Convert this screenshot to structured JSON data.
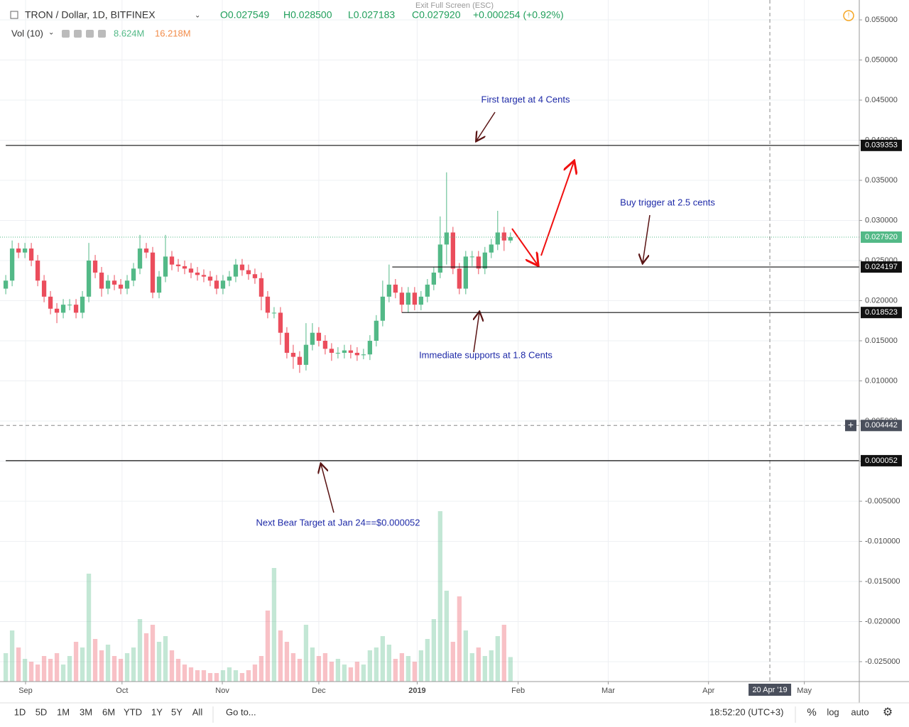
{
  "chart_data": {
    "type": "candlestick",
    "title": "TRON / Dollar, 1D, BITFINEX",
    "ohlc_legend": [
      "O0.027549",
      "H0.028500",
      "L0.027183",
      "C0.027920",
      "+0.000254 (+0.92%)"
    ],
    "volume_legend": {
      "name": "Vol (10)",
      "values": [
        "8.624M",
        "16.218M"
      ]
    },
    "up_color": "#53b987",
    "down_color": "#eb4d5c",
    "open": [
      0.0215,
      0.0225,
      0.0265,
      0.026,
      0.0265,
      0.025,
      0.0225,
      0.0205,
      0.019,
      0.0185,
      0.0195,
      0.0195,
      0.0185,
      0.0205,
      0.025,
      0.0235,
      0.0215,
      0.0225,
      0.022,
      0.0215,
      0.0225,
      0.024,
      0.0265,
      0.026,
      0.021,
      0.023,
      0.0255,
      0.0245,
      0.0243,
      0.024,
      0.0235,
      0.0232,
      0.023,
      0.0225,
      0.0215,
      0.0225,
      0.023,
      0.0245,
      0.0238,
      0.0233,
      0.0228,
      0.0205,
      0.0185,
      0.0185,
      0.016,
      0.0135,
      0.013,
      0.012,
      0.0145,
      0.016,
      0.015,
      0.014,
      0.0135,
      0.0135,
      0.0138,
      0.0135,
      0.0132,
      0.0133,
      0.015,
      0.0175,
      0.0205,
      0.022,
      0.021,
      0.0195,
      0.021,
      0.0195,
      0.0205,
      0.022,
      0.0235,
      0.027,
      0.0285,
      0.024,
      0.0215,
      0.0255,
      0.0255,
      0.024,
      0.026,
      0.027,
      0.0285,
      0.0275
    ],
    "high": [
      0.0232,
      0.0275,
      0.0272,
      0.0272,
      0.0272,
      0.0257,
      0.0232,
      0.0212,
      0.0197,
      0.0202,
      0.0202,
      0.0202,
      0.0212,
      0.0272,
      0.0257,
      0.0242,
      0.0232,
      0.0232,
      0.0227,
      0.0232,
      0.0247,
      0.0282,
      0.0272,
      0.0267,
      0.0237,
      0.0282,
      0.0262,
      0.0252,
      0.025,
      0.0247,
      0.0242,
      0.0239,
      0.0237,
      0.0232,
      0.0232,
      0.0237,
      0.0252,
      0.0252,
      0.0245,
      0.024,
      0.0235,
      0.0212,
      0.0192,
      0.0192,
      0.0167,
      0.0145,
      0.0137,
      0.0172,
      0.0172,
      0.0167,
      0.0157,
      0.0147,
      0.0142,
      0.0145,
      0.0145,
      0.0142,
      0.014,
      0.0157,
      0.0182,
      0.0225,
      0.0245,
      0.0227,
      0.0217,
      0.0217,
      0.0217,
      0.0212,
      0.0227,
      0.0242,
      0.0305,
      0.036,
      0.0292,
      0.0247,
      0.0262,
      0.0262,
      0.0262,
      0.0267,
      0.0277,
      0.0312,
      0.0292,
      0.0285
    ],
    "low": [
      0.0208,
      0.0218,
      0.0253,
      0.0253,
      0.0243,
      0.0218,
      0.0198,
      0.0183,
      0.0172,
      0.0178,
      0.0188,
      0.0178,
      0.0178,
      0.0198,
      0.0228,
      0.0205,
      0.0208,
      0.0213,
      0.0208,
      0.0208,
      0.0218,
      0.0233,
      0.0253,
      0.0203,
      0.0203,
      0.0223,
      0.0238,
      0.0236,
      0.0233,
      0.0228,
      0.0225,
      0.0223,
      0.0218,
      0.0208,
      0.0208,
      0.0218,
      0.0223,
      0.0231,
      0.0226,
      0.0221,
      0.0188,
      0.0178,
      0.0178,
      0.0145,
      0.0128,
      0.0115,
      0.011,
      0.0113,
      0.0138,
      0.0143,
      0.0133,
      0.0125,
      0.0128,
      0.0128,
      0.0128,
      0.0125,
      0.0127,
      0.0126,
      0.0143,
      0.0168,
      0.0198,
      0.0203,
      0.0185,
      0.0185,
      0.0188,
      0.0188,
      0.0198,
      0.0213,
      0.0228,
      0.0245,
      0.0233,
      0.0208,
      0.0208,
      0.0243,
      0.0233,
      0.0233,
      0.0253,
      0.0263,
      0.0262,
      0.027183
    ],
    "close": [
      0.0225,
      0.0265,
      0.026,
      0.0265,
      0.025,
      0.0225,
      0.0205,
      0.019,
      0.0185,
      0.0195,
      0.0195,
      0.0185,
      0.0205,
      0.025,
      0.0235,
      0.0215,
      0.0225,
      0.022,
      0.0215,
      0.0225,
      0.024,
      0.0265,
      0.026,
      0.021,
      0.023,
      0.0255,
      0.0245,
      0.0243,
      0.024,
      0.0235,
      0.0232,
      0.023,
      0.0225,
      0.0215,
      0.0225,
      0.023,
      0.0245,
      0.0238,
      0.0233,
      0.0228,
      0.0205,
      0.0185,
      0.0185,
      0.016,
      0.0135,
      0.013,
      0.012,
      0.0145,
      0.016,
      0.015,
      0.014,
      0.0135,
      0.0135,
      0.0138,
      0.0135,
      0.0132,
      0.0133,
      0.015,
      0.0175,
      0.0205,
      0.022,
      0.021,
      0.0195,
      0.021,
      0.0195,
      0.0205,
      0.022,
      0.0235,
      0.027,
      0.0285,
      0.024,
      0.0215,
      0.0255,
      0.0255,
      0.024,
      0.026,
      0.027,
      0.0285,
      0.0275,
      0.02792
    ],
    "volume": {
      "values": [
        10,
        18,
        12,
        8,
        7,
        6,
        9,
        8,
        10,
        6,
        9,
        14,
        12,
        38,
        15,
        11,
        13,
        9,
        8,
        10,
        12,
        22,
        17,
        20,
        14,
        16,
        11,
        8,
        6,
        5,
        4,
        4,
        3,
        3,
        4,
        5,
        4,
        3,
        4,
        6,
        9,
        25,
        40,
        18,
        14,
        10,
        8,
        20,
        12,
        9,
        10,
        7,
        8,
        6,
        5,
        7,
        6,
        11,
        12,
        16,
        13,
        8,
        10,
        9,
        7,
        11,
        15,
        22,
        60,
        32,
        14,
        30,
        18,
        10,
        12,
        9,
        11,
        16,
        20,
        8.624
      ],
      "ylim": [
        0,
        240
      ]
    },
    "xlim": [
      -0.9,
      133.6
    ],
    "xticks": [
      {
        "value": 3.1,
        "label": "Sep"
      },
      {
        "value": 18.2,
        "label": "Oct"
      },
      {
        "value": 33.9,
        "label": "Nov"
      },
      {
        "value": 49,
        "label": "Dec"
      },
      {
        "value": 64.4,
        "label": "2019"
      },
      {
        "value": 80.2,
        "label": "Feb"
      },
      {
        "value": 94.3,
        "label": "Mar"
      },
      {
        "value": 110,
        "label": "Apr"
      },
      {
        "value": 125,
        "label": "May"
      }
    ],
    "ylim": [
      -0.02748,
      0.05748
    ],
    "yticks": [
      {
        "value": 0.055,
        "label": "0.055000"
      },
      {
        "value": 0.05,
        "label": "0.050000"
      },
      {
        "value": 0.045,
        "label": "0.045000"
      },
      {
        "value": 0.04,
        "label": "0.040000"
      },
      {
        "value": 0.035,
        "label": "0.035000"
      },
      {
        "value": 0.03,
        "label": "0.030000"
      },
      {
        "value": 0.025,
        "label": "0.025000"
      },
      {
        "value": 0.02,
        "label": "0.020000"
      },
      {
        "value": 0.015,
        "label": "0.015000"
      },
      {
        "value": 0.01,
        "label": "0.010000"
      },
      {
        "value": 0.005,
        "label": "0.005000"
      },
      {
        "value": 0,
        "label": "0.000000"
      },
      {
        "value": -0.005,
        "label": "-0.005000"
      },
      {
        "value": -0.01,
        "label": "-0.010000"
      },
      {
        "value": -0.015,
        "label": "-0.015000"
      },
      {
        "value": -0.02,
        "label": "-0.020000"
      },
      {
        "value": -0.025,
        "label": "-0.025000"
      }
    ],
    "grid": true,
    "levels": [
      {
        "value": 0.039353,
        "label": "0.039353"
      },
      {
        "value": 0.024197,
        "label": "0.024197"
      },
      {
        "value": 0.018523,
        "label": "0.018523"
      },
      {
        "value": 5.2e-05,
        "label": "0.000052"
      }
    ],
    "last": {
      "value": 0.02792,
      "label": "0.027920"
    },
    "crosshair": {
      "value": 0.004442,
      "label": "0.004442",
      "x": 119.6,
      "x_label": "20 Apr '19"
    },
    "annotations": [
      "First target at 4 Cents",
      "Buy trigger at 2.5 cents",
      "Immediate supports at 1.8 Cents",
      "Next Bear Target at Jan 24==$0.000052"
    ]
  },
  "ui": {
    "exit": "Exit Full Screen (ESC)",
    "ranges": [
      "1D",
      "5D",
      "1M",
      "3M",
      "6M",
      "YTD",
      "1Y",
      "5Y",
      "All"
    ],
    "goto": "Go to...",
    "clock": "18:52:20 (UTC+3)",
    "options": [
      "%",
      "log",
      "auto"
    ]
  }
}
